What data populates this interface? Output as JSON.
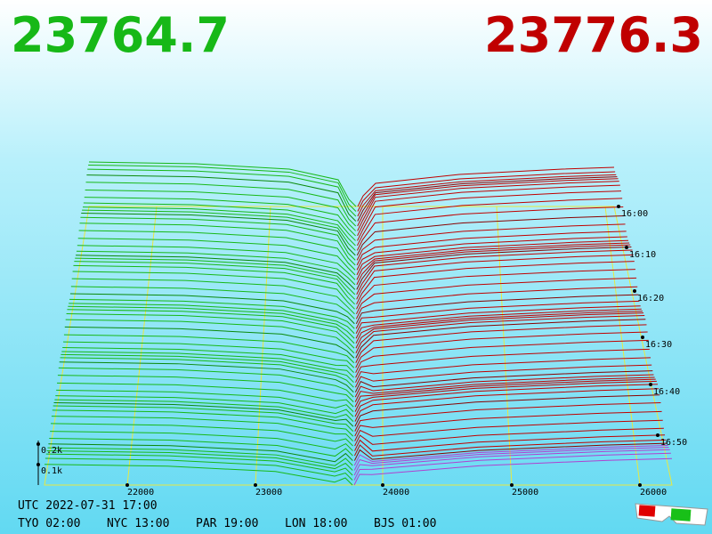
{
  "prices": {
    "bid": "23764.7",
    "ask": "23776.3"
  },
  "price_axis": [
    "22000",
    "23000",
    "24000",
    "25000",
    "26000"
  ],
  "time_axis": [
    "16:00",
    "16:10",
    "16:20",
    "16:30",
    "16:40",
    "16:50"
  ],
  "volume_axis": [
    "0.2k",
    "0.1k"
  ],
  "utc": "UTC 2022-07-31 17:00",
  "clocks": [
    "TYO 02:00",
    "NYC 13:00",
    "PAR 19:00",
    "LON 18:00",
    "BJS 01:00"
  ]
}
